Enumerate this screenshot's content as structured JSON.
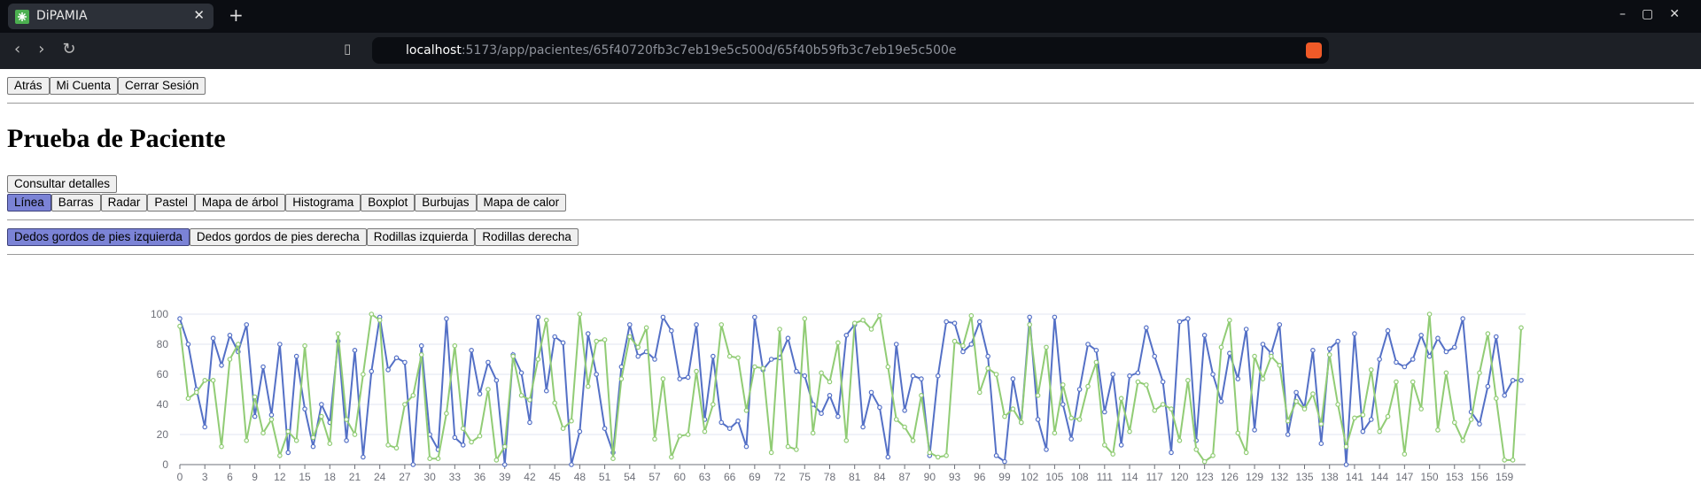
{
  "browser": {
    "tab_title": "DiPAMIA",
    "url_host": "localhost",
    "url_path": ":5173/app/pacientes/65f40720fb3c7eb19e5c500d/65f40b59fb3c7eb19e5c500e"
  },
  "nav": [
    "Atrás",
    "Mi Cuenta",
    "Cerrar Sesión"
  ],
  "title": "Prueba de Paciente",
  "details_button": "Consultar detalles",
  "chart_types": {
    "items": [
      "Línea",
      "Barras",
      "Radar",
      "Pastel",
      "Mapa de árbol",
      "Histograma",
      "Boxplot",
      "Burbujas",
      "Mapa de calor"
    ],
    "selected": 0
  },
  "joints": {
    "items": [
      "Dedos gordos de pies izquierda",
      "Dedos gordos de pies derecha",
      "Rodillas izquierda",
      "Rodillas derecha"
    ],
    "selected": 0
  },
  "chart_data": {
    "type": "line",
    "x": [
      0,
      1,
      2,
      3,
      4,
      5,
      6,
      7,
      8,
      9,
      10,
      11,
      12,
      13,
      14,
      15,
      16,
      17,
      18,
      19,
      20,
      21,
      22,
      23,
      24,
      25,
      26,
      27,
      28,
      29,
      30,
      31,
      32,
      33,
      34,
      35,
      36,
      37,
      38,
      39,
      40,
      41,
      42,
      43,
      44,
      45,
      46,
      47,
      48,
      49,
      50,
      51,
      52,
      53,
      54,
      55,
      56,
      57,
      58,
      59,
      60,
      61,
      62,
      63,
      64,
      65,
      66,
      67,
      68,
      69,
      70,
      71,
      72,
      73,
      74,
      75,
      76,
      77,
      78,
      79,
      80,
      81,
      82,
      83,
      84,
      85,
      86,
      87,
      88,
      89,
      90,
      91,
      92,
      93,
      94,
      95,
      96,
      97,
      98,
      99,
      100,
      101,
      102,
      103,
      104,
      105,
      106,
      107,
      108,
      109,
      110,
      111,
      112,
      113,
      114,
      115,
      116,
      117,
      118,
      119,
      120,
      121,
      122,
      123,
      124,
      125,
      126,
      127,
      128,
      129,
      130,
      131,
      132,
      133,
      134,
      135,
      136,
      137,
      138,
      139,
      140,
      141,
      142,
      143,
      144,
      145,
      146,
      147,
      148,
      149,
      150,
      151,
      152,
      153,
      154,
      155,
      156,
      157,
      158,
      159,
      160,
      161
    ],
    "xlim": [
      0,
      161
    ],
    "xticks": [
      0,
      3,
      6,
      9,
      12,
      15,
      18,
      21,
      24,
      27,
      30,
      33,
      36,
      39,
      42,
      45,
      48,
      51,
      54,
      57,
      60,
      63,
      66,
      69,
      72,
      75,
      78,
      81,
      84,
      87,
      90,
      93,
      96,
      99,
      102,
      105,
      108,
      111,
      114,
      117,
      120,
      123,
      126,
      129,
      132,
      135,
      138,
      141,
      144,
      147,
      150,
      153,
      156,
      159
    ],
    "ylim": [
      0,
      100
    ],
    "yticks": [
      0,
      20,
      40,
      60,
      80,
      100
    ],
    "grid": true,
    "series": [
      {
        "color": "#5470c6",
        "values": [
          97,
          80,
          50,
          25,
          84,
          66,
          86,
          75,
          93,
          32,
          65,
          33,
          80,
          8,
          72,
          37,
          12,
          40,
          28,
          82,
          16,
          76,
          5,
          62,
          98,
          63,
          71,
          68,
          0,
          79,
          20,
          10,
          97,
          18,
          13,
          76,
          47,
          68,
          56,
          0,
          73,
          61,
          28,
          98,
          49,
          85,
          81,
          0,
          22,
          87,
          60,
          24,
          8,
          65,
          93,
          72,
          75,
          70,
          98,
          89,
          57,
          58,
          93,
          30,
          72,
          28,
          24,
          29,
          12,
          98,
          63,
          70,
          71,
          84,
          62,
          59,
          40,
          34,
          46,
          32,
          86,
          93,
          25,
          48,
          38,
          5,
          80,
          36,
          59,
          57,
          6,
          59,
          95,
          94,
          75,
          80,
          95,
          72,
          6,
          2,
          57,
          28,
          98,
          30,
          10,
          98,
          40,
          17,
          50,
          80,
          76,
          35,
          60,
          13,
          59,
          61,
          91,
          72,
          55,
          8,
          95,
          97,
          16,
          86,
          60,
          42,
          74,
          57,
          90,
          23,
          80,
          74,
          93,
          20,
          48,
          38,
          76,
          14,
          77,
          82,
          0,
          87,
          22,
          30,
          70,
          89,
          68,
          65,
          70,
          86,
          72,
          84,
          75,
          78,
          97,
          35,
          27,
          52,
          85,
          46,
          56,
          56
        ]
      },
      {
        "color": "#91cc75",
        "values": [
          92,
          44,
          48,
          56,
          56,
          12,
          70,
          80,
          16,
          45,
          21,
          30,
          6,
          22,
          16,
          79,
          18,
          32,
          14,
          87,
          30,
          20,
          60,
          100,
          96,
          13,
          11,
          40,
          46,
          73,
          4,
          4,
          34,
          79,
          24,
          15,
          19,
          50,
          3,
          12,
          72,
          46,
          43,
          70,
          96,
          41,
          24,
          29,
          100,
          52,
          82,
          83,
          4,
          57,
          85,
          78,
          91,
          17,
          57,
          5,
          19,
          20,
          62,
          22,
          40,
          93,
          72,
          71,
          36,
          65,
          64,
          8,
          90,
          12,
          10,
          97,
          21,
          61,
          55,
          81,
          16,
          94,
          96,
          90,
          99,
          65,
          30,
          25,
          16,
          46,
          8,
          5,
          6,
          82,
          79,
          99,
          48,
          64,
          60,
          32,
          37,
          28,
          93,
          46,
          78,
          21,
          53,
          31,
          30,
          52,
          68,
          13,
          7,
          44,
          22,
          55,
          53,
          36,
          40,
          37,
          16,
          56,
          10,
          2,
          6,
          78,
          96,
          21,
          8,
          72,
          57,
          72,
          66,
          29,
          42,
          37,
          47,
          27,
          73,
          40,
          12,
          31,
          33,
          63,
          22,
          32,
          55,
          7,
          55,
          37,
          100,
          23,
          61,
          28,
          16,
          30,
          61,
          87,
          44,
          3,
          3,
          91
        ]
      }
    ]
  }
}
